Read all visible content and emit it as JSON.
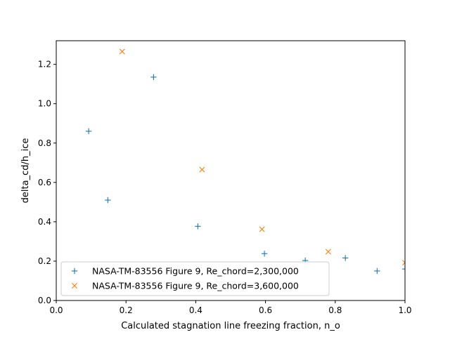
{
  "chart_data": {
    "type": "scatter",
    "title": "",
    "xlabel": "Calculated stagnation line freezing fraction, n_o",
    "ylabel": "delta_cd/h_ice",
    "xlim": [
      0.0,
      1.0
    ],
    "ylim": [
      0.0,
      1.32
    ],
    "x_ticks": [
      0.0,
      0.2,
      0.4,
      0.6,
      0.8,
      1.0
    ],
    "y_ticks": [
      0.0,
      0.2,
      0.4,
      0.6,
      0.8,
      1.0,
      1.2
    ],
    "x_tick_labels": [
      "0.0",
      "0.2",
      "0.4",
      "0.6",
      "0.8",
      "1.0"
    ],
    "y_tick_labels": [
      "0.0",
      "0.2",
      "0.4",
      "0.6",
      "0.8",
      "1.0",
      "1.2"
    ],
    "grid": false,
    "legend_position": "lower-left",
    "series": [
      {
        "name": "NASA-TM-83556 Figure 9, Re_chord=2,300,000",
        "marker": "+",
        "color": "#1f77b4",
        "points": [
          [
            0.093,
            0.86
          ],
          [
            0.148,
            0.51
          ],
          [
            0.279,
            1.135
          ],
          [
            0.406,
            0.377
          ],
          [
            0.597,
            0.238
          ],
          [
            0.714,
            0.203
          ],
          [
            0.829,
            0.216
          ],
          [
            0.92,
            0.15
          ],
          [
            1.0,
            0.16
          ]
        ]
      },
      {
        "name": "NASA-TM-83556 Figure 9, Re_chord=3,600,000",
        "marker": "x",
        "color": "#ff7f0e",
        "points": [
          [
            0.189,
            1.265
          ],
          [
            0.418,
            0.665
          ],
          [
            0.59,
            0.362
          ],
          [
            0.78,
            0.248
          ],
          [
            1.0,
            0.192
          ]
        ]
      }
    ]
  }
}
